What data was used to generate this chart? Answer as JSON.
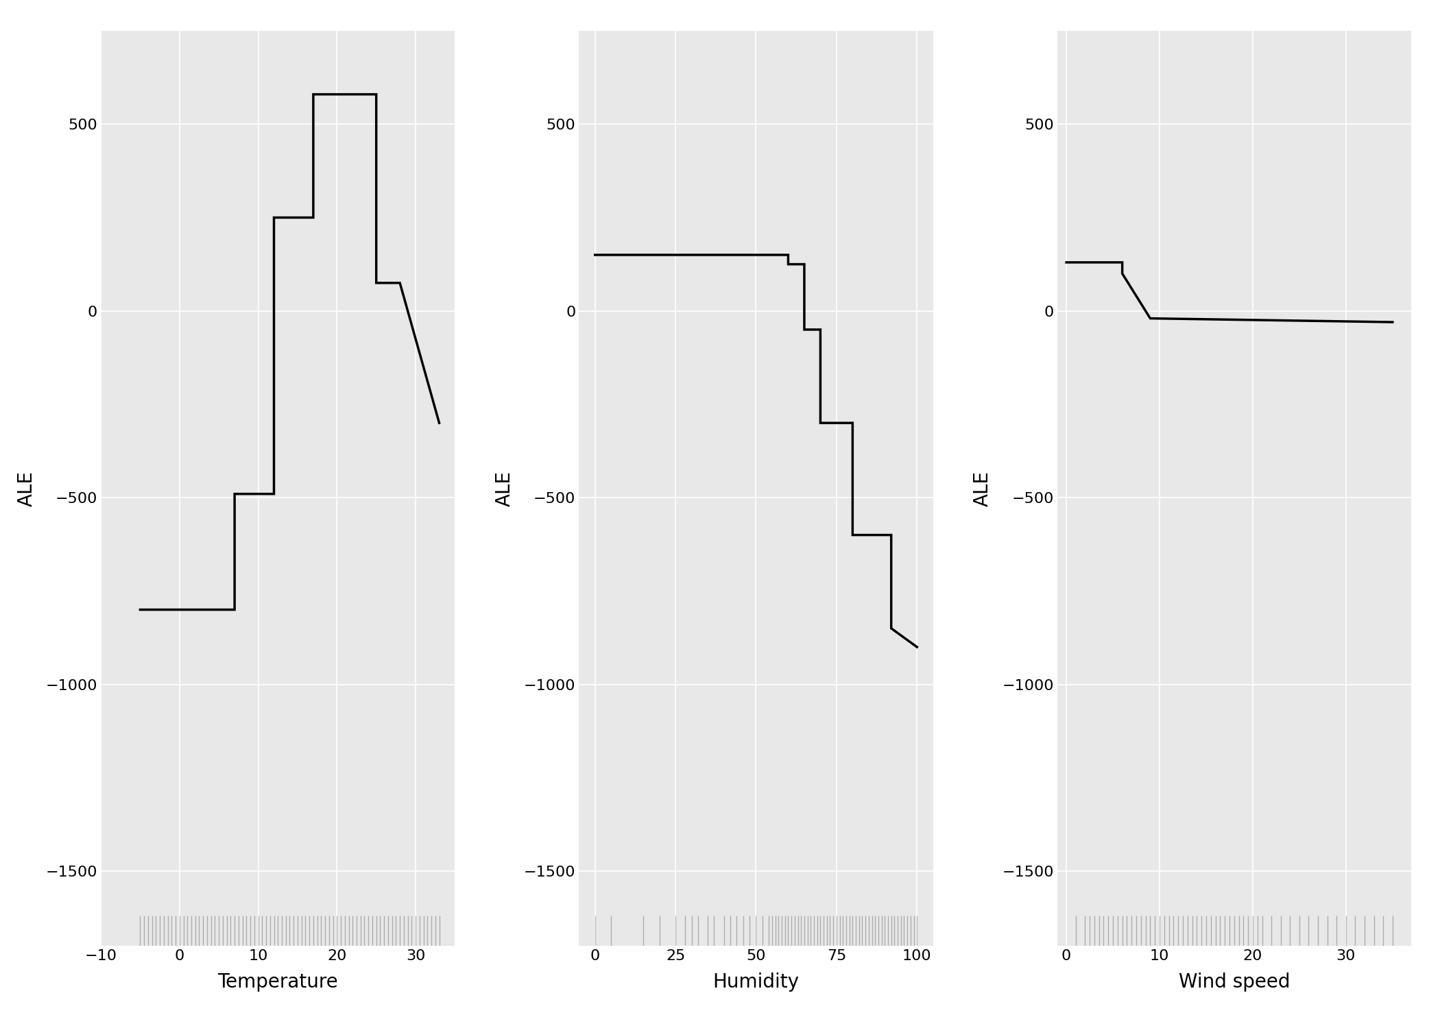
{
  "temp_x": [
    -5,
    7,
    7,
    12,
    12,
    17,
    17,
    25,
    25,
    28,
    33
  ],
  "temp_y": [
    -800,
    -800,
    -490,
    -490,
    250,
    250,
    580,
    580,
    75,
    75,
    -300
  ],
  "temp_xlim": [
    -7,
    35
  ],
  "temp_xticks": [
    -10,
    0,
    10,
    20,
    30
  ],
  "temp_ylim": [
    -1700,
    750
  ],
  "temp_yticks": [
    -1500,
    -1000,
    -500,
    0,
    500
  ],
  "temp_xlabel": "Temperature",
  "temp_ylabel": "ALE",
  "hum_x": [
    0,
    60,
    60,
    65,
    65,
    70,
    70,
    80,
    80,
    92,
    92,
    100
  ],
  "hum_y": [
    150,
    150,
    125,
    125,
    -50,
    -50,
    -300,
    -300,
    -600,
    -600,
    -850,
    -900
  ],
  "hum_xlim": [
    -5,
    105
  ],
  "hum_xticks": [
    0,
    25,
    50,
    75,
    100
  ],
  "hum_ylim": [
    -1700,
    750
  ],
  "hum_yticks": [
    -1500,
    -1000,
    -500,
    0,
    500
  ],
  "hum_xlabel": "Humidity",
  "hum_ylabel": "ALE",
  "wind_x": [
    0,
    6,
    6,
    9,
    9,
    35
  ],
  "wind_y": [
    130,
    130,
    100,
    -20,
    -20,
    -30
  ],
  "wind_xlim": [
    -1,
    37
  ],
  "wind_xticks": [
    0,
    10,
    20,
    30
  ],
  "wind_ylim": [
    -1700,
    750
  ],
  "wind_yticks": [
    -1500,
    -1000,
    -500,
    0,
    500
  ],
  "wind_xlabel": "Wind speed",
  "wind_ylabel": "ALE",
  "line_color": "#000000",
  "line_width": 2.5,
  "bg_color": "#e8e8e8",
  "grid_color": "#ffffff",
  "rug_color": "#000000",
  "label_fontsize": 20,
  "tick_fontsize": 16,
  "fig_bg_color": "#ffffff",
  "temp_rug": [
    -5.0,
    -4.5,
    -4.0,
    -3.5,
    -3.0,
    -2.5,
    -2.0,
    -1.5,
    -1.0,
    -0.5,
    0.0,
    0.5,
    1.0,
    1.5,
    2.0,
    2.5,
    3.0,
    3.5,
    4.0,
    4.5,
    5.0,
    5.5,
    6.0,
    6.5,
    7.0,
    7.5,
    8.0,
    8.5,
    9.0,
    9.5,
    10.0,
    10.5,
    11.0,
    11.5,
    12.0,
    12.5,
    13.0,
    13.5,
    14.0,
    14.5,
    15.0,
    15.5,
    16.0,
    16.5,
    17.0,
    17.5,
    18.0,
    18.5,
    19.0,
    19.5,
    20.0,
    20.5,
    21.0,
    21.5,
    22.0,
    22.5,
    23.0,
    23.5,
    24.0,
    24.5,
    25.0,
    25.5,
    26.0,
    26.5,
    27.0,
    27.5,
    28.0,
    28.5,
    29.0,
    29.5,
    30.0,
    30.5,
    31.0,
    31.5,
    32.0,
    32.5,
    33.0
  ],
  "hum_rug": [
    0,
    5,
    15,
    20,
    25,
    28,
    30,
    32,
    35,
    37,
    40,
    42,
    44,
    46,
    48,
    50,
    52,
    54,
    55,
    56,
    57,
    58,
    59,
    60,
    61,
    62,
    63,
    64,
    65,
    66,
    67,
    68,
    69,
    70,
    71,
    72,
    73,
    74,
    75,
    76,
    77,
    78,
    79,
    80,
    81,
    82,
    83,
    84,
    85,
    86,
    87,
    88,
    89,
    90,
    91,
    92,
    93,
    94,
    95,
    96,
    97,
    98,
    99,
    100
  ],
  "wind_rug": [
    1.0,
    2.0,
    2.5,
    3.0,
    3.5,
    4.0,
    4.5,
    5.0,
    5.5,
    6.0,
    6.5,
    7.0,
    7.5,
    8.0,
    8.5,
    9.0,
    9.5,
    10.0,
    10.5,
    11.0,
    11.5,
    12.0,
    12.5,
    13.0,
    13.5,
    14.0,
    14.5,
    15.0,
    15.5,
    16.0,
    16.5,
    17.0,
    17.5,
    18.0,
    18.5,
    19.0,
    19.5,
    20.0,
    20.5,
    21.0,
    22.0,
    23.0,
    24.0,
    25.0,
    26.0,
    27.0,
    28.0,
    29.0,
    30.0,
    31.0,
    32.0,
    33.0,
    34.0,
    35.0
  ]
}
